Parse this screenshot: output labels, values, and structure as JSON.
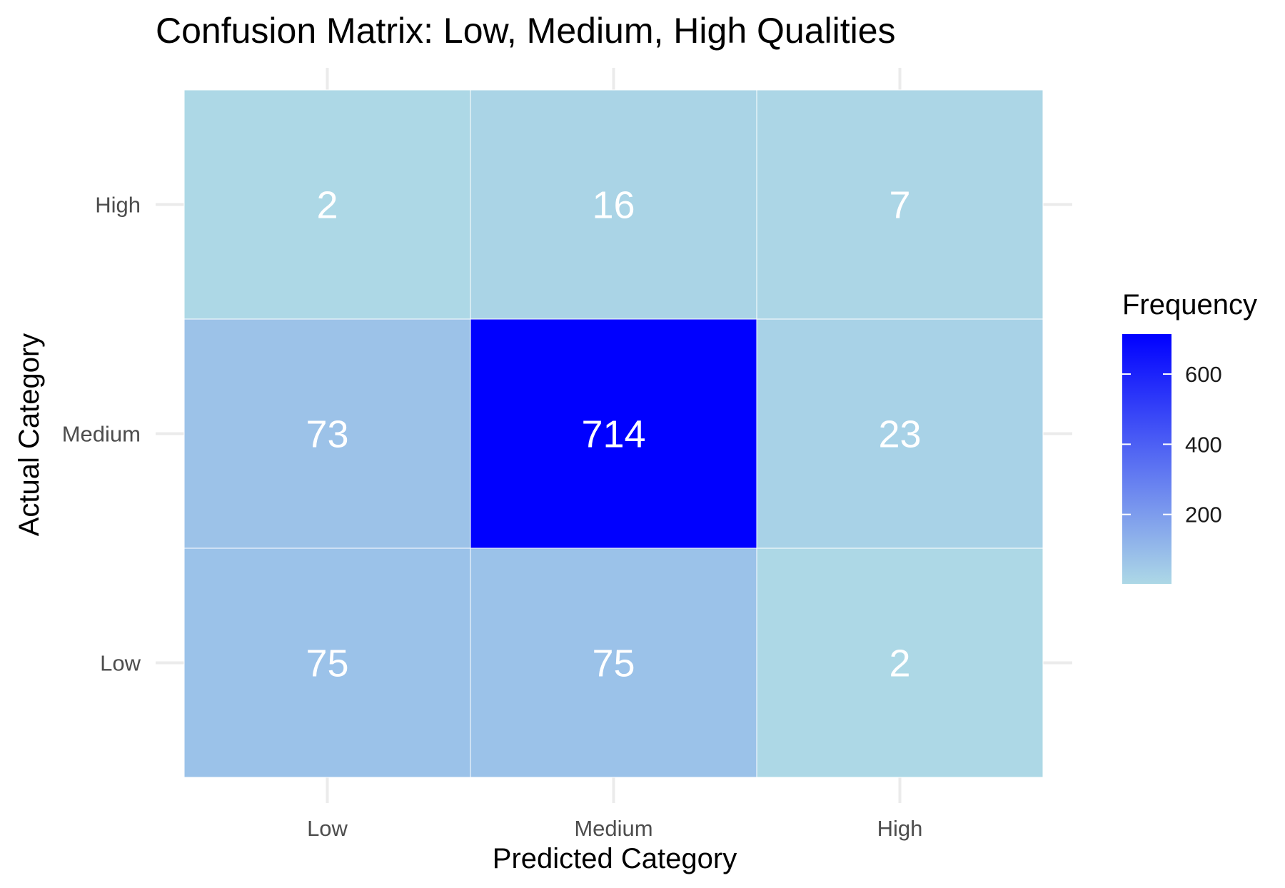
{
  "chart_data": {
    "type": "heatmap",
    "title": "Confusion Matrix: Low, Medium, High Qualities",
    "xlabel": "Predicted Category",
    "ylabel": "Actual Category",
    "x_categories": [
      "Low",
      "Medium",
      "High"
    ],
    "y_categories": [
      "Low",
      "Medium",
      "High"
    ],
    "values": [
      [
        75,
        75,
        2
      ],
      [
        73,
        714,
        23
      ],
      [
        2,
        16,
        7
      ]
    ],
    "value_layout": "rows follow y_categories (Low, Medium, High), columns follow x_categories (Low, Medium, High)",
    "legend": {
      "title": "Frequency",
      "ticks": [
        200,
        400,
        600
      ],
      "range": [
        2,
        714
      ],
      "placement": "right"
    },
    "color_low": "#add8e6",
    "color_high": "#0000ff",
    "cell_text_color": "#ffffff",
    "grid": true
  }
}
